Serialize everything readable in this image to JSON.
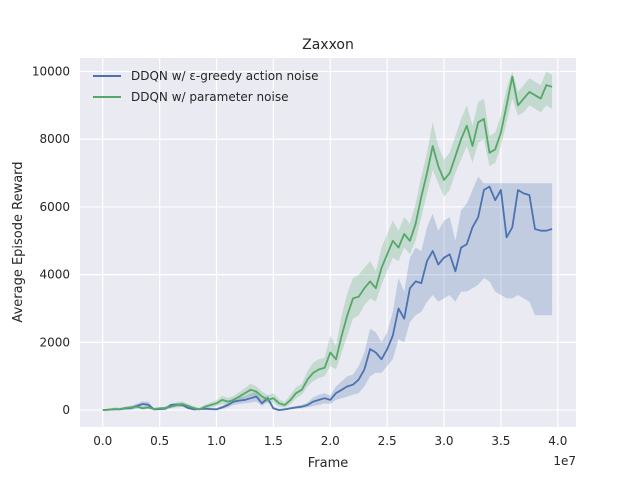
{
  "chart_data": {
    "type": "line",
    "title": "Zaxxon",
    "xlabel": "Frame",
    "ylabel": "Average Episode Reward",
    "x_scale_label": "1e7",
    "xlim": [
      -2000000,
      41600000
    ],
    "ylim": [
      -500,
      10400
    ],
    "x_ticks": [
      0,
      5000000,
      10000000,
      15000000,
      20000000,
      25000000,
      30000000,
      35000000,
      40000000
    ],
    "x_tick_labels": [
      "0.0",
      "0.5",
      "1.0",
      "1.5",
      "2.0",
      "2.5",
      "3.0",
      "3.5",
      "4.0"
    ],
    "y_ticks": [
      0,
      2000,
      4000,
      6000,
      8000,
      10000
    ],
    "y_tick_labels": [
      "0",
      "2000",
      "4000",
      "6000",
      "8000",
      "10000"
    ],
    "grid": true,
    "legend_position": "top-left",
    "background_color": "#eaeaf2",
    "series": [
      {
        "name": "DDQN w/ ε-greedy action noise",
        "color": "#4c72b0",
        "x": [
          0,
          500000,
          1000000,
          1500000,
          2000000,
          2500000,
          3000000,
          3500000,
          4000000,
          4500000,
          5000000,
          5500000,
          6000000,
          6500000,
          7000000,
          7500000,
          8000000,
          8500000,
          9000000,
          9500000,
          10000000,
          10500000,
          11000000,
          11500000,
          12000000,
          12500000,
          13000000,
          13500000,
          14000000,
          14500000,
          15000000,
          15500000,
          16000000,
          16500000,
          17000000,
          17500000,
          18000000,
          18500000,
          19000000,
          19500000,
          20000000,
          20500000,
          21000000,
          21500000,
          22000000,
          22500000,
          23000000,
          23500000,
          24000000,
          24500000,
          25000000,
          25500000,
          26000000,
          26500000,
          27000000,
          27500000,
          28000000,
          28500000,
          29000000,
          29500000,
          30000000,
          30500000,
          31000000,
          31500000,
          32000000,
          32500000,
          33000000,
          33500000,
          34000000,
          34500000,
          35000000,
          35500000,
          36000000,
          36500000,
          37000000,
          37500000,
          38000000,
          38500000,
          39000000,
          39500000
        ],
        "y": [
          0,
          10,
          30,
          20,
          50,
          60,
          120,
          180,
          160,
          20,
          30,
          40,
          150,
          160,
          150,
          60,
          20,
          30,
          40,
          30,
          20,
          80,
          150,
          250,
          280,
          300,
          350,
          400,
          200,
          350,
          50,
          0,
          20,
          50,
          80,
          100,
          150,
          250,
          300,
          350,
          300,
          500,
          600,
          700,
          750,
          900,
          1200,
          1800,
          1700,
          1500,
          1800,
          2200,
          3000,
          2700,
          3600,
          3800,
          3750,
          4400,
          4700,
          4300,
          4500,
          4600,
          4100,
          4800,
          4900,
          5400,
          5700,
          6500,
          6600,
          6200,
          6500,
          5100,
          5400,
          6500,
          6400,
          6350,
          5350,
          5300,
          5300,
          5350
        ],
        "band_lo": [
          0,
          0,
          0,
          0,
          0,
          0,
          50,
          80,
          80,
          0,
          0,
          0,
          80,
          100,
          100,
          20,
          0,
          0,
          0,
          0,
          0,
          30,
          80,
          150,
          180,
          200,
          220,
          250,
          120,
          250,
          20,
          0,
          0,
          20,
          40,
          50,
          80,
          120,
          150,
          200,
          180,
          300,
          350,
          400,
          450,
          500,
          700,
          1000,
          1100,
          1100,
          1300,
          1500,
          2100,
          2000,
          2600,
          2800,
          2900,
          3200,
          3400,
          3200,
          3300,
          3400,
          3200,
          3500,
          3500,
          3600,
          3700,
          3900,
          3800,
          3500,
          3400,
          3300,
          3300,
          3400,
          3300,
          3200,
          2800,
          2800,
          2800,
          2800
        ],
        "band_hi": [
          0,
          30,
          80,
          60,
          100,
          120,
          190,
          260,
          250,
          60,
          80,
          100,
          200,
          220,
          200,
          110,
          50,
          70,
          90,
          70,
          60,
          130,
          220,
          350,
          380,
          400,
          480,
          550,
          300,
          450,
          100,
          30,
          60,
          90,
          120,
          150,
          220,
          380,
          450,
          500,
          430,
          700,
          850,
          1000,
          1050,
          1300,
          1700,
          2400,
          2300,
          2000,
          2300,
          2900,
          3900,
          3500,
          4500,
          4800,
          4700,
          5400,
          5800,
          5300,
          5600,
          5700,
          5000,
          5900,
          6100,
          6500,
          6900,
          6700,
          6700,
          6700,
          6700,
          6700,
          6700,
          6700,
          6700,
          6700,
          6700,
          6700,
          6700,
          6700
        ]
      },
      {
        "name": "DDQN w/ parameter noise",
        "color": "#55a868",
        "x": [
          0,
          500000,
          1000000,
          1500000,
          2000000,
          2500000,
          3000000,
          3500000,
          4000000,
          4500000,
          5000000,
          5500000,
          6000000,
          6500000,
          7000000,
          7500000,
          8000000,
          8500000,
          9000000,
          9500000,
          10000000,
          10500000,
          11000000,
          11500000,
          12000000,
          12500000,
          13000000,
          13500000,
          14000000,
          14500000,
          15000000,
          15500000,
          16000000,
          16500000,
          17000000,
          17500000,
          18000000,
          18500000,
          19000000,
          19500000,
          20000000,
          20500000,
          21000000,
          21500000,
          22000000,
          22500000,
          23000000,
          23500000,
          24000000,
          24500000,
          25000000,
          25500000,
          26000000,
          26500000,
          27000000,
          27500000,
          28000000,
          28500000,
          29000000,
          29500000,
          30000000,
          30500000,
          31000000,
          31500000,
          32000000,
          32500000,
          33000000,
          33500000,
          34000000,
          34500000,
          35000000,
          35500000,
          36000000,
          36500000,
          37000000,
          37500000,
          38000000,
          38500000,
          39000000,
          39500000
        ],
        "y": [
          0,
          10,
          20,
          30,
          60,
          80,
          100,
          50,
          80,
          30,
          50,
          60,
          100,
          150,
          180,
          120,
          60,
          20,
          100,
          150,
          200,
          300,
          250,
          300,
          400,
          500,
          600,
          550,
          400,
          300,
          350,
          200,
          150,
          300,
          500,
          600,
          900,
          1100,
          1200,
          1250,
          1700,
          1500,
          2200,
          2800,
          3300,
          3350,
          3600,
          3800,
          3600,
          4200,
          4600,
          5000,
          4800,
          5200,
          5000,
          5500,
          6300,
          7000,
          7800,
          7200,
          6800,
          7000,
          7500,
          8000,
          8400,
          7800,
          8500,
          8600,
          7600,
          7700,
          8200,
          9000,
          9850,
          9000,
          9200,
          9400,
          9300,
          9200,
          9600,
          9550
        ],
        "band_lo": [
          0,
          0,
          0,
          0,
          20,
          30,
          50,
          20,
          30,
          0,
          20,
          20,
          50,
          80,
          100,
          60,
          20,
          0,
          50,
          80,
          120,
          180,
          150,
          200,
          280,
          350,
          420,
          400,
          280,
          200,
          220,
          100,
          80,
          180,
          350,
          450,
          700,
          850,
          950,
          1000,
          1300,
          1200,
          1700,
          2200,
          2700,
          2800,
          3100,
          3300,
          3200,
          3700,
          4100,
          4500,
          4400,
          4800,
          4600,
          5000,
          5700,
          6400,
          7100,
          6700,
          6300,
          6500,
          7000,
          7400,
          7800,
          7300,
          7900,
          8000,
          7200,
          7300,
          7800,
          8500,
          9200,
          8700,
          8800,
          9000,
          8900,
          8800,
          9000,
          8900
        ],
        "band_hi": [
          0,
          30,
          50,
          70,
          100,
          130,
          160,
          90,
          130,
          70,
          90,
          100,
          160,
          220,
          260,
          180,
          110,
          60,
          160,
          230,
          290,
          420,
          360,
          420,
          530,
          650,
          780,
          700,
          550,
          430,
          500,
          320,
          240,
          450,
          680,
          780,
          1150,
          1400,
          1500,
          1550,
          2200,
          1900,
          2800,
          3450,
          3900,
          4000,
          4200,
          4400,
          4100,
          4800,
          5200,
          5600,
          5300,
          5700,
          5500,
          6100,
          6900,
          7600,
          8500,
          7800,
          7400,
          7600,
          8100,
          8600,
          9000,
          8400,
          9100,
          9200,
          8100,
          8200,
          8700,
          9500,
          10000,
          9400,
          9600,
          9800,
          9700,
          9600,
          10000,
          9900
        ]
      }
    ]
  }
}
